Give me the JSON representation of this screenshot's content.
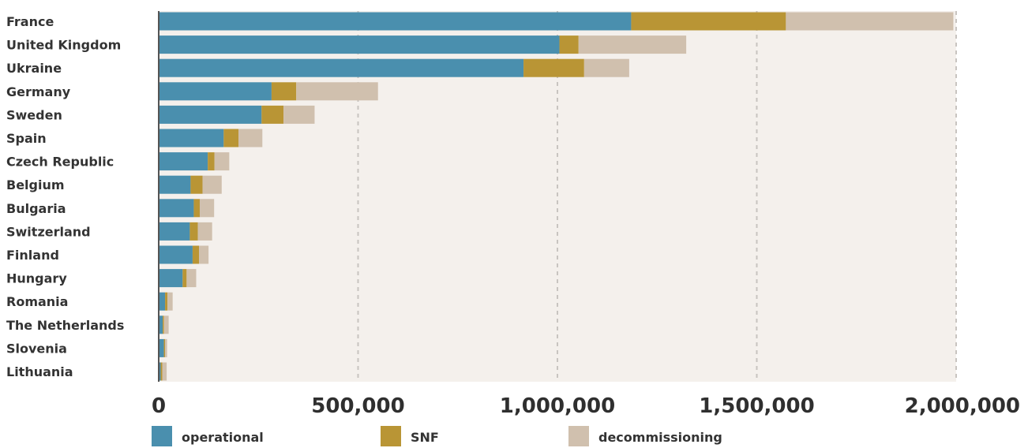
{
  "chart_data": {
    "type": "bar",
    "orientation": "horizontal",
    "stacked": true,
    "title": "",
    "xlabel": "",
    "ylabel": "",
    "xlim": [
      0,
      2000000
    ],
    "grid": true,
    "legend_placement": "bottom",
    "categories": [
      "France",
      "United Kingdom",
      "Ukraine",
      "Germany",
      "Sweden",
      "Spain",
      "Czech Republic",
      "Belgium",
      "Bulgaria",
      "Switzerland",
      "Finland",
      "Hungary",
      "Romania",
      "The Netherlands",
      "Slovenia",
      "Lithuania"
    ],
    "series": [
      {
        "name": "operational",
        "color": "#4a8fae",
        "values": [
          1185000,
          1005000,
          915000,
          283000,
          258000,
          163000,
          123000,
          80000,
          88000,
          78000,
          85000,
          60000,
          16000,
          10000,
          13000,
          5000
        ]
      },
      {
        "name": "SNF",
        "color": "#b99535",
        "values": [
          388000,
          48000,
          152000,
          62000,
          55000,
          37000,
          17000,
          30000,
          15000,
          20000,
          16000,
          10000,
          6000,
          3000,
          3000,
          4000
        ]
      },
      {
        "name": "decommissioning",
        "color": "#d0c0ae",
        "values": [
          420000,
          270000,
          113000,
          205000,
          78000,
          60000,
          37000,
          48000,
          36000,
          36000,
          24000,
          24000,
          13000,
          12000,
          5000,
          11000
        ]
      }
    ],
    "x_ticks": [
      0,
      500000,
      1000000,
      1500000,
      2000000
    ],
    "x_tick_labels": [
      "0",
      "500,000",
      "1,000,000",
      "1,500,000",
      "2,000,000"
    ]
  }
}
